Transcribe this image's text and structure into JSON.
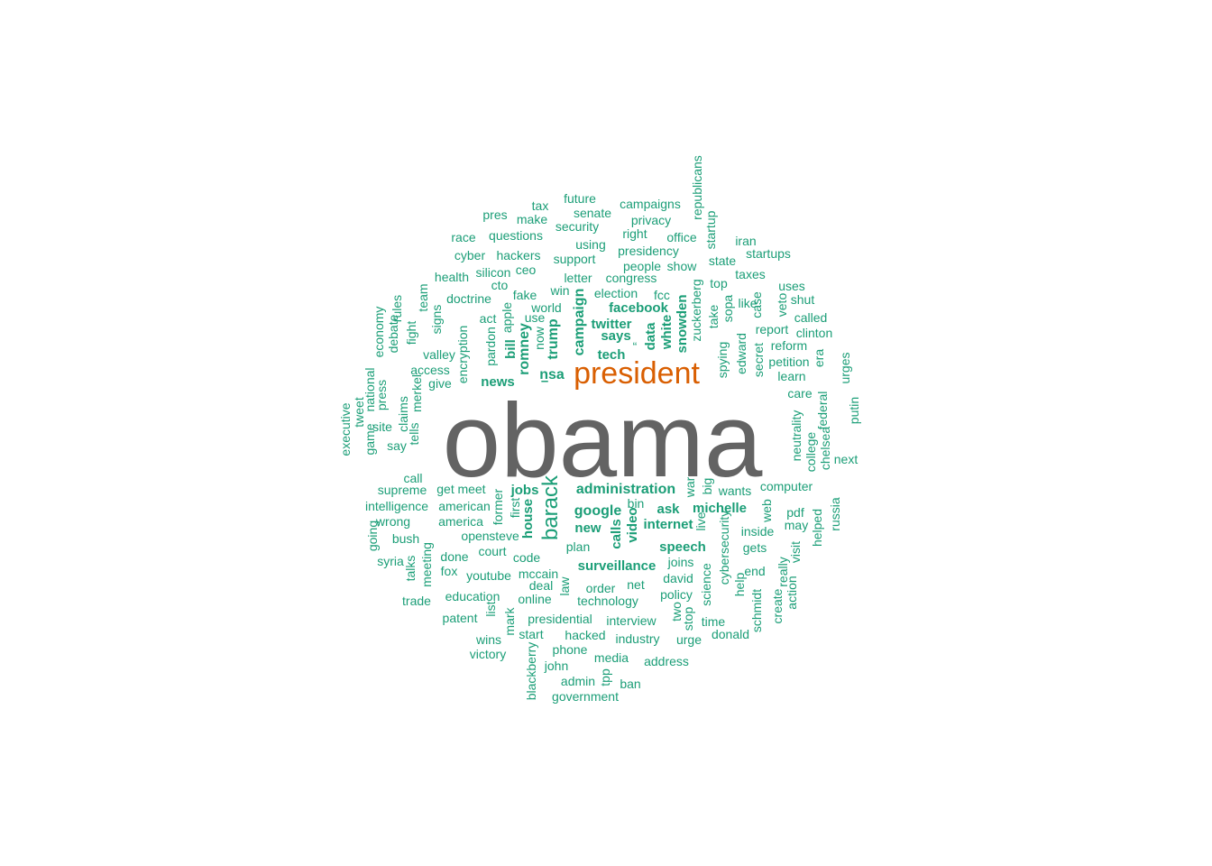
{
  "colors": {
    "big": "#636363",
    "medium": "#d95f02",
    "small": "#1b9e77"
  },
  "words": [
    {
      "text": "obama",
      "size": "xl",
      "color": "big"
    },
    {
      "text": "president",
      "size": "l",
      "color": "medium"
    },
    {
      "text": "barack",
      "size": "m",
      "color": "small"
    },
    {
      "text": "administration",
      "size": "s2",
      "color": "small"
    },
    {
      "text": "campaign",
      "size": "s2",
      "color": "small"
    },
    {
      "text": "trump",
      "size": "s2",
      "color": "small"
    },
    {
      "text": "romney",
      "size": "s2",
      "color": "small"
    },
    {
      "text": "nsa",
      "size": "s2",
      "color": "small"
    },
    {
      "text": "google",
      "size": "s2",
      "color": "small"
    },
    {
      "text": "facebook",
      "size": "s1",
      "color": "small"
    },
    {
      "text": "twitter",
      "size": "s1",
      "color": "small"
    },
    {
      "text": "says",
      "size": "s1",
      "color": "small"
    },
    {
      "text": "tech",
      "size": "s1",
      "color": "small"
    },
    {
      "text": "data",
      "size": "s1",
      "color": "small"
    },
    {
      "text": "white",
      "size": "s1",
      "color": "small"
    },
    {
      "text": "snowden",
      "size": "s1",
      "color": "small"
    },
    {
      "text": "news",
      "size": "s1",
      "color": "small"
    },
    {
      "text": "jobs",
      "size": "s1",
      "color": "small"
    },
    {
      "text": "house",
      "size": "s1",
      "color": "small"
    },
    {
      "text": "new",
      "size": "s1",
      "color": "small"
    },
    {
      "text": "ask",
      "size": "s1",
      "color": "small"
    },
    {
      "text": "michelle",
      "size": "s1",
      "color": "small"
    },
    {
      "text": "internet",
      "size": "s1",
      "color": "small"
    },
    {
      "text": "video",
      "size": "s1",
      "color": "small"
    },
    {
      "text": "calls",
      "size": "s1",
      "color": "small"
    },
    {
      "text": "speech",
      "size": "s1",
      "color": "small"
    },
    {
      "text": "surveillance",
      "size": "s1",
      "color": "small"
    },
    {
      "text": "bill",
      "size": "s1",
      "color": "small"
    },
    {
      "text": "–",
      "size": "s1",
      "color": "small"
    },
    {
      "text": "“",
      "size": "s0",
      "color": "small"
    },
    {
      "text": "tax",
      "size": "s0",
      "color": "small"
    },
    {
      "text": "future",
      "size": "s0",
      "color": "small"
    },
    {
      "text": "senate",
      "size": "s0",
      "color": "small"
    },
    {
      "text": "campaigns",
      "size": "s0",
      "color": "small"
    },
    {
      "text": "pres",
      "size": "s0",
      "color": "small"
    },
    {
      "text": "make",
      "size": "s0",
      "color": "small"
    },
    {
      "text": "security",
      "size": "s0",
      "color": "small"
    },
    {
      "text": "privacy",
      "size": "s0",
      "color": "small"
    },
    {
      "text": "republicans",
      "size": "s0",
      "color": "small"
    },
    {
      "text": "race",
      "size": "s0",
      "color": "small"
    },
    {
      "text": "questions",
      "size": "s0",
      "color": "small"
    },
    {
      "text": "right",
      "size": "s0",
      "color": "small"
    },
    {
      "text": "office",
      "size": "s0",
      "color": "small"
    },
    {
      "text": "startup",
      "size": "s0",
      "color": "small"
    },
    {
      "text": "iran",
      "size": "s0",
      "color": "small"
    },
    {
      "text": "using",
      "size": "s0",
      "color": "small"
    },
    {
      "text": "presidency",
      "size": "s0",
      "color": "small"
    },
    {
      "text": "cyber",
      "size": "s0",
      "color": "small"
    },
    {
      "text": "hackers",
      "size": "s0",
      "color": "small"
    },
    {
      "text": "support",
      "size": "s0",
      "color": "small"
    },
    {
      "text": "startups",
      "size": "s0",
      "color": "small"
    },
    {
      "text": "state",
      "size": "s0",
      "color": "small"
    },
    {
      "text": "people",
      "size": "s0",
      "color": "small"
    },
    {
      "text": "show",
      "size": "s0",
      "color": "small"
    },
    {
      "text": "ceo",
      "size": "s0",
      "color": "small"
    },
    {
      "text": "health",
      "size": "s0",
      "color": "small"
    },
    {
      "text": "silicon",
      "size": "s0",
      "color": "small"
    },
    {
      "text": "letter",
      "size": "s0",
      "color": "small"
    },
    {
      "text": "congress",
      "size": "s0",
      "color": "small"
    },
    {
      "text": "taxes",
      "size": "s0",
      "color": "small"
    },
    {
      "text": "cto",
      "size": "s0",
      "color": "small"
    },
    {
      "text": "top",
      "size": "s0",
      "color": "small"
    },
    {
      "text": "uses",
      "size": "s0",
      "color": "small"
    },
    {
      "text": "team",
      "size": "s0",
      "color": "small"
    },
    {
      "text": "win",
      "size": "s0",
      "color": "small"
    },
    {
      "text": "election",
      "size": "s0",
      "color": "small"
    },
    {
      "text": "fcc",
      "size": "s0",
      "color": "small"
    },
    {
      "text": "case",
      "size": "s0",
      "color": "small"
    },
    {
      "text": "veto",
      "size": "s0",
      "color": "small"
    },
    {
      "text": "shut",
      "size": "s0",
      "color": "small"
    },
    {
      "text": "doctrine",
      "size": "s0",
      "color": "small"
    },
    {
      "text": "fake",
      "size": "s0",
      "color": "small"
    },
    {
      "text": "rules",
      "size": "s0",
      "color": "small"
    },
    {
      "text": "world",
      "size": "s0",
      "color": "small"
    },
    {
      "text": "zuckerberg",
      "size": "s0",
      "color": "small"
    },
    {
      "text": "sopa",
      "size": "s0",
      "color": "small"
    },
    {
      "text": "like",
      "size": "s0",
      "color": "small"
    },
    {
      "text": "called",
      "size": "s0",
      "color": "small"
    },
    {
      "text": "economy",
      "size": "s0",
      "color": "small"
    },
    {
      "text": "signs",
      "size": "s0",
      "color": "small"
    },
    {
      "text": "act",
      "size": "s0",
      "color": "small"
    },
    {
      "text": "apple",
      "size": "s0",
      "color": "small"
    },
    {
      "text": "use",
      "size": "s0",
      "color": "small"
    },
    {
      "text": "take",
      "size": "s0",
      "color": "small"
    },
    {
      "text": "report",
      "size": "s0",
      "color": "small"
    },
    {
      "text": "clinton",
      "size": "s0",
      "color": "small"
    },
    {
      "text": "fight",
      "size": "s0",
      "color": "small"
    },
    {
      "text": "encryption",
      "size": "s0",
      "color": "small"
    },
    {
      "text": "now",
      "size": "s0",
      "color": "small"
    },
    {
      "text": "edward",
      "size": "s0",
      "color": "small"
    },
    {
      "text": "reform",
      "size": "s0",
      "color": "small"
    },
    {
      "text": "debate",
      "size": "s0",
      "color": "small"
    },
    {
      "text": "valley",
      "size": "s0",
      "color": "small"
    },
    {
      "text": "pardon",
      "size": "s0",
      "color": "small"
    },
    {
      "text": "spying",
      "size": "s0",
      "color": "small"
    },
    {
      "text": "secret",
      "size": "s0",
      "color": "small"
    },
    {
      "text": "petition",
      "size": "s0",
      "color": "small"
    },
    {
      "text": "era",
      "size": "s0",
      "color": "small"
    },
    {
      "text": "national",
      "size": "s0",
      "color": "small"
    },
    {
      "text": "access",
      "size": "s0",
      "color": "small"
    },
    {
      "text": "learn",
      "size": "s0",
      "color": "small"
    },
    {
      "text": "urges",
      "size": "s0",
      "color": "small"
    },
    {
      "text": "press",
      "size": "s0",
      "color": "small"
    },
    {
      "text": "give",
      "size": "s0",
      "color": "small"
    },
    {
      "text": "care",
      "size": "s0",
      "color": "small"
    },
    {
      "text": "merkel",
      "size": "s0",
      "color": "small"
    },
    {
      "text": "claims",
      "size": "s0",
      "color": "small"
    },
    {
      "text": "federal",
      "size": "s0",
      "color": "small"
    },
    {
      "text": "putin",
      "size": "s0",
      "color": "small"
    },
    {
      "text": "tweet",
      "size": "s0",
      "color": "small"
    },
    {
      "text": "executive",
      "size": "s0",
      "color": "small"
    },
    {
      "text": "site",
      "size": "s0",
      "color": "small"
    },
    {
      "text": "tells",
      "size": "s0",
      "color": "small"
    },
    {
      "text": "neutrality",
      "size": "s0",
      "color": "small"
    },
    {
      "text": "game",
      "size": "s0",
      "color": "small"
    },
    {
      "text": "say",
      "size": "s0",
      "color": "small"
    },
    {
      "text": "chelsea",
      "size": "s0",
      "color": "small"
    },
    {
      "text": "college",
      "size": "s0",
      "color": "small"
    },
    {
      "text": "next",
      "size": "s0",
      "color": "small"
    },
    {
      "text": "call",
      "size": "s0",
      "color": "small"
    },
    {
      "text": "war",
      "size": "s0",
      "color": "small"
    },
    {
      "text": "big",
      "size": "s0",
      "color": "small"
    },
    {
      "text": "supreme",
      "size": "s0",
      "color": "small"
    },
    {
      "text": "get",
      "size": "s0",
      "color": "small"
    },
    {
      "text": "meet",
      "size": "s0",
      "color": "small"
    },
    {
      "text": "former",
      "size": "s0",
      "color": "small"
    },
    {
      "text": "bin",
      "size": "s0",
      "color": "small"
    },
    {
      "text": "wants",
      "size": "s0",
      "color": "small"
    },
    {
      "text": "computer",
      "size": "s0",
      "color": "small"
    },
    {
      "text": "intelligence",
      "size": "s0",
      "color": "small"
    },
    {
      "text": "american",
      "size": "s0",
      "color": "small"
    },
    {
      "text": "first",
      "size": "s0",
      "color": "small"
    },
    {
      "text": "web",
      "size": "s0",
      "color": "small"
    },
    {
      "text": "wrong",
      "size": "s0",
      "color": "small"
    },
    {
      "text": "america",
      "size": "s0",
      "color": "small"
    },
    {
      "text": "live",
      "size": "s0",
      "color": "small"
    },
    {
      "text": "cybersecurity",
      "size": "s0",
      "color": "small"
    },
    {
      "text": "pdf",
      "size": "s0",
      "color": "small"
    },
    {
      "text": "helped",
      "size": "s0",
      "color": "small"
    },
    {
      "text": "russia",
      "size": "s0",
      "color": "small"
    },
    {
      "text": "going",
      "size": "s0",
      "color": "small"
    },
    {
      "text": "bush",
      "size": "s0",
      "color": "small"
    },
    {
      "text": "open",
      "size": "s0",
      "color": "small"
    },
    {
      "text": "steve",
      "size": "s0",
      "color": "small"
    },
    {
      "text": "inside",
      "size": "s0",
      "color": "small"
    },
    {
      "text": "may",
      "size": "s0",
      "color": "small"
    },
    {
      "text": "plan",
      "size": "s0",
      "color": "small"
    },
    {
      "text": "court",
      "size": "s0",
      "color": "small"
    },
    {
      "text": "gets",
      "size": "s0",
      "color": "small"
    },
    {
      "text": "visit",
      "size": "s0",
      "color": "small"
    },
    {
      "text": "syria",
      "size": "s0",
      "color": "small"
    },
    {
      "text": "talks",
      "size": "s0",
      "color": "small"
    },
    {
      "text": "meeting",
      "size": "s0",
      "color": "small"
    },
    {
      "text": "done",
      "size": "s0",
      "color": "small"
    },
    {
      "text": "code",
      "size": "s0",
      "color": "small"
    },
    {
      "text": "joins",
      "size": "s0",
      "color": "small"
    },
    {
      "text": "really",
      "size": "s0",
      "color": "small"
    },
    {
      "text": "fox",
      "size": "s0",
      "color": "small"
    },
    {
      "text": "youtube",
      "size": "s0",
      "color": "small"
    },
    {
      "text": "mccain",
      "size": "s0",
      "color": "small"
    },
    {
      "text": "david",
      "size": "s0",
      "color": "small"
    },
    {
      "text": "science",
      "size": "s0",
      "color": "small"
    },
    {
      "text": "end",
      "size": "s0",
      "color": "small"
    },
    {
      "text": "deal",
      "size": "s0",
      "color": "small"
    },
    {
      "text": "law",
      "size": "s0",
      "color": "small"
    },
    {
      "text": "net",
      "size": "s0",
      "color": "small"
    },
    {
      "text": "order",
      "size": "s0",
      "color": "small"
    },
    {
      "text": "help",
      "size": "s0",
      "color": "small"
    },
    {
      "text": "action",
      "size": "s0",
      "color": "small"
    },
    {
      "text": "trade",
      "size": "s0",
      "color": "small"
    },
    {
      "text": "education",
      "size": "s0",
      "color": "small"
    },
    {
      "text": "online",
      "size": "s0",
      "color": "small"
    },
    {
      "text": "technology",
      "size": "s0",
      "color": "small"
    },
    {
      "text": "policy",
      "size": "s0",
      "color": "small"
    },
    {
      "text": "schmidt",
      "size": "s0",
      "color": "small"
    },
    {
      "text": "create",
      "size": "s0",
      "color": "small"
    },
    {
      "text": "list",
      "size": "s0",
      "color": "small"
    },
    {
      "text": "two",
      "size": "s0",
      "color": "small"
    },
    {
      "text": "patent",
      "size": "s0",
      "color": "small"
    },
    {
      "text": "mark",
      "size": "s0",
      "color": "small"
    },
    {
      "text": "presidential",
      "size": "s0",
      "color": "small"
    },
    {
      "text": "interview",
      "size": "s0",
      "color": "small"
    },
    {
      "text": "stop",
      "size": "s0",
      "color": "small"
    },
    {
      "text": "time",
      "size": "s0",
      "color": "small"
    },
    {
      "text": "start",
      "size": "s0",
      "color": "small"
    },
    {
      "text": "hacked",
      "size": "s0",
      "color": "small"
    },
    {
      "text": "donald",
      "size": "s0",
      "color": "small"
    },
    {
      "text": "wins",
      "size": "s0",
      "color": "small"
    },
    {
      "text": "industry",
      "size": "s0",
      "color": "small"
    },
    {
      "text": "urge",
      "size": "s0",
      "color": "small"
    },
    {
      "text": "phone",
      "size": "s0",
      "color": "small"
    },
    {
      "text": "victory",
      "size": "s0",
      "color": "small"
    },
    {
      "text": "media",
      "size": "s0",
      "color": "small"
    },
    {
      "text": "address",
      "size": "s0",
      "color": "small"
    },
    {
      "text": "john",
      "size": "s0",
      "color": "small"
    },
    {
      "text": "blackberry",
      "size": "s0",
      "color": "small"
    },
    {
      "text": "tpp",
      "size": "s0",
      "color": "small"
    },
    {
      "text": "admin",
      "size": "s0",
      "color": "small"
    },
    {
      "text": "ban",
      "size": "s0",
      "color": "small"
    },
    {
      "text": "government",
      "size": "s0",
      "color": "small"
    }
  ]
}
